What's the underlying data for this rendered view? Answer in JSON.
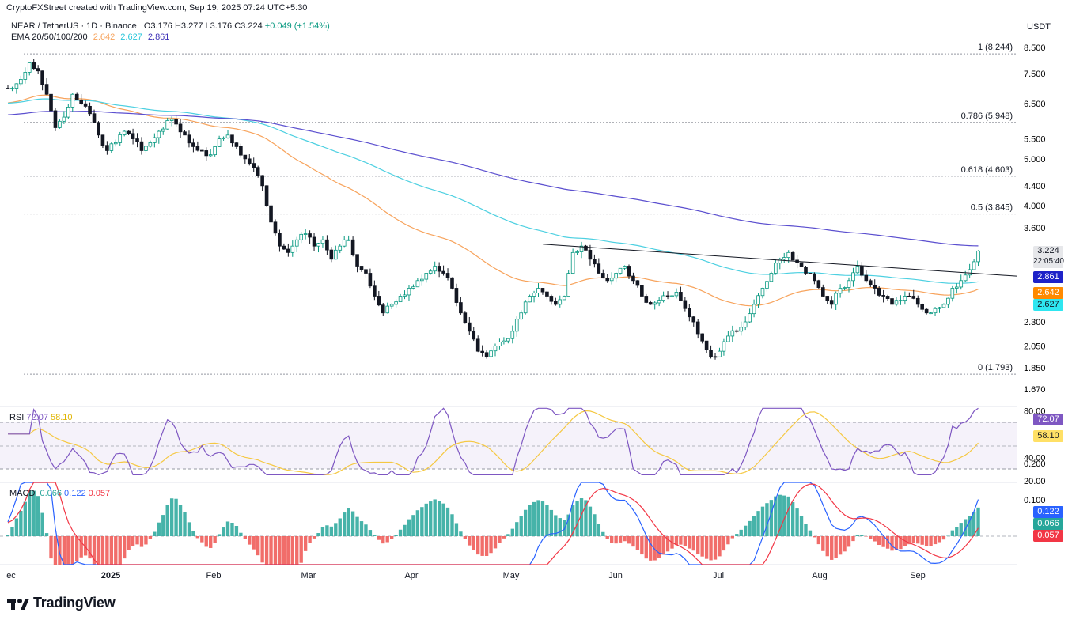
{
  "header": {
    "credit": "CryptoFXStreet created with TradingView.com, Sep 19, 2025 07:24 UTC+5:30",
    "symbol": "NEAR / TetherUS · 1D · Binance",
    "ohlc": {
      "o": "O3.176",
      "h": "H3.277",
      "l": "L3.176",
      "c": "C3.224",
      "chg": "+0.049 (+1.54%)"
    },
    "ema_label": "EMA 20/50/100/200",
    "ema_values": [
      "2.642",
      "2.627",
      "2.861"
    ],
    "currency": "USDT"
  },
  "colors": {
    "up": "#089981",
    "down": "#131722",
    "ema50": "#f7a35c",
    "ema100": "#4dd0e1",
    "ema200": "#5b4fcf",
    "rsi": "#7e57c2",
    "rsi_ma": "#f5c842",
    "macd": "#2962ff",
    "signal": "#f23645",
    "hist_up": "#26a69a",
    "hist_down": "#ef5350"
  },
  "chart_data": {
    "type": "candlestick",
    "price_axis": {
      "ticks": [
        "8.500",
        "7.500",
        "6.500",
        "5.500",
        "5.000",
        "4.400",
        "4.000",
        "3.600",
        "2.300",
        "2.050",
        "1.850",
        "1.670"
      ],
      "scale": "log"
    },
    "time_axis": [
      "ec",
      "2025",
      "Feb",
      "Mar",
      "Apr",
      "May",
      "Jun",
      "Jul",
      "Aug",
      "Sep"
    ],
    "fibonacci": [
      {
        "label": "1 (8.244)",
        "value": 8.244
      },
      {
        "label": "0.786 (5.948)",
        "value": 5.948
      },
      {
        "label": "0.618 (4.603)",
        "value": 4.603
      },
      {
        "label": "0.5 (3.845)",
        "value": 3.845
      },
      {
        "label": "0 (1.793)",
        "value": 1.793
      }
    ],
    "last_price": {
      "value": "3.224",
      "countdown": "22:05:40"
    },
    "ema_tags": {
      "ema200": "2.861",
      "ema50": "2.642",
      "ema100": "2.627"
    },
    "trendline": {
      "from": {
        "date": "May 10",
        "value": 3.33
      },
      "to": {
        "date": "Sep 19",
        "value": 2.86
      }
    },
    "rsi": {
      "label": "RSI",
      "value": "72.07",
      "ma": "58.10",
      "ticks": [
        "80.00",
        "40.00",
        "20.00"
      ],
      "levels": [
        70,
        50,
        30
      ]
    },
    "macd": {
      "label": "MACD",
      "values": [
        "0.066",
        "0.122",
        "0.057"
      ],
      "ticks": [
        "0.200",
        "0.100"
      ]
    },
    "close_path": [
      7.0,
      7.3,
      7.9,
      7.6,
      6.8,
      5.8,
      6.1,
      6.8,
      6.5,
      6.2,
      5.6,
      5.2,
      5.4,
      5.7,
      5.5,
      5.2,
      5.4,
      5.7,
      6.0,
      5.9,
      5.6,
      5.3,
      5.2,
      5.1,
      5.5,
      5.6,
      5.3,
      5.0,
      4.8,
      4.4,
      3.7,
      3.3,
      3.2,
      3.4,
      3.5,
      3.3,
      3.4,
      3.1,
      3.3,
      3.4,
      3.0,
      2.9,
      2.6,
      2.4,
      2.5,
      2.6,
      2.7,
      2.8,
      2.9,
      3.0,
      2.9,
      2.7,
      2.4,
      2.2,
      2.0,
      1.95,
      2.05,
      2.1,
      2.2,
      2.4,
      2.6,
      2.7,
      2.6,
      2.5,
      2.6,
      3.2,
      3.3,
      3.1,
      2.9,
      2.8,
      2.9,
      3.0,
      2.8,
      2.6,
      2.5,
      2.55,
      2.6,
      2.65,
      2.45,
      2.3,
      2.1,
      1.95,
      2.0,
      2.15,
      2.2,
      2.3,
      2.5,
      2.7,
      2.9,
      3.1,
      3.2,
      3.05,
      2.9,
      2.8,
      2.6,
      2.5,
      2.7,
      2.8,
      3.0,
      2.8,
      2.7,
      2.6,
      2.5,
      2.55,
      2.6,
      2.5,
      2.4,
      2.45,
      2.5,
      2.7,
      2.8,
      2.95,
      3.224
    ]
  }
}
